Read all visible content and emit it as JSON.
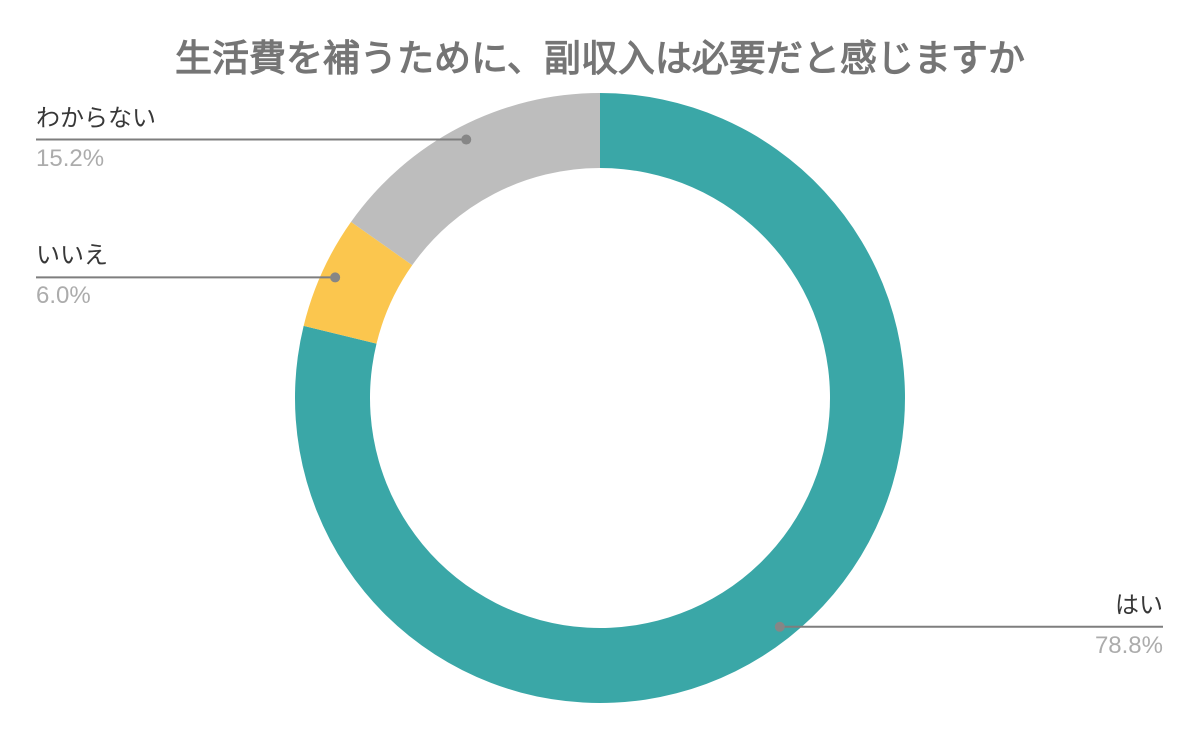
{
  "chart_data": {
    "type": "pie",
    "subtype": "donut",
    "title": "生活費を補うために、副収入は必要だと感じますか",
    "direction": "clockwise",
    "start_angle_deg": 0,
    "legend_position": "none",
    "annotation_style": "leader-line-labels",
    "categories": [
      "はい",
      "いいえ",
      "わからない"
    ],
    "values": [
      78.8,
      6.0,
      15.2
    ],
    "slices": [
      {
        "id": "yes",
        "label": "はい",
        "value": 78.8,
        "pct": "78.8%",
        "color": "#3AA7A7",
        "label_side": "right"
      },
      {
        "id": "no",
        "label": "いいえ",
        "value": 6.0,
        "pct": "6.0%",
        "color": "#FBC64E",
        "label_side": "left"
      },
      {
        "id": "unknown",
        "label": "わからない",
        "value": 15.2,
        "pct": "15.2%",
        "color": "#BDBDBD",
        "label_side": "left"
      }
    ]
  },
  "styles": {
    "background": "#FFFFFF",
    "title_color": "#757575",
    "label_color": "#383838",
    "value_color": "#ACACAC",
    "leader_line_color": "#7E7E7E",
    "leader_dot_color": "#868686"
  }
}
